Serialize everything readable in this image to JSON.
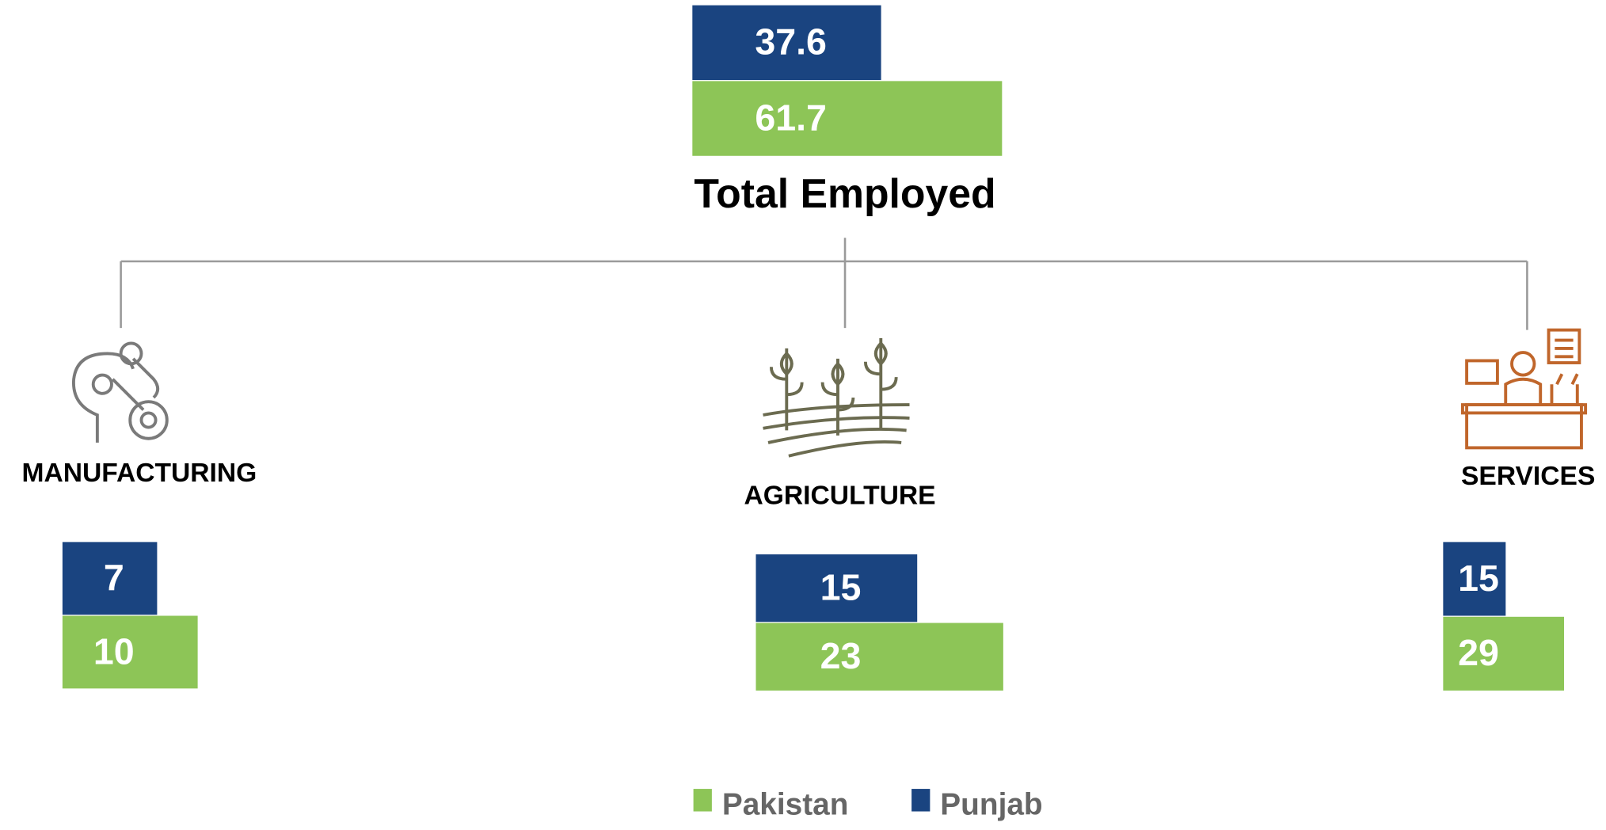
{
  "total": {
    "label": "Total Employed",
    "punjab": 37.6,
    "pakistan": 61.7
  },
  "sectors": [
    {
      "label": "MANUFACTURING",
      "punjab": 7,
      "pakistan": 10
    },
    {
      "label": "AGRICULTURE",
      "punjab": 15,
      "pakistan": 23
    },
    {
      "label": "SERVICES",
      "punjab": 15,
      "pakistan": 29
    }
  ],
  "legend": {
    "pakistan": "Pakistan",
    "punjab": "Punjab"
  }
}
